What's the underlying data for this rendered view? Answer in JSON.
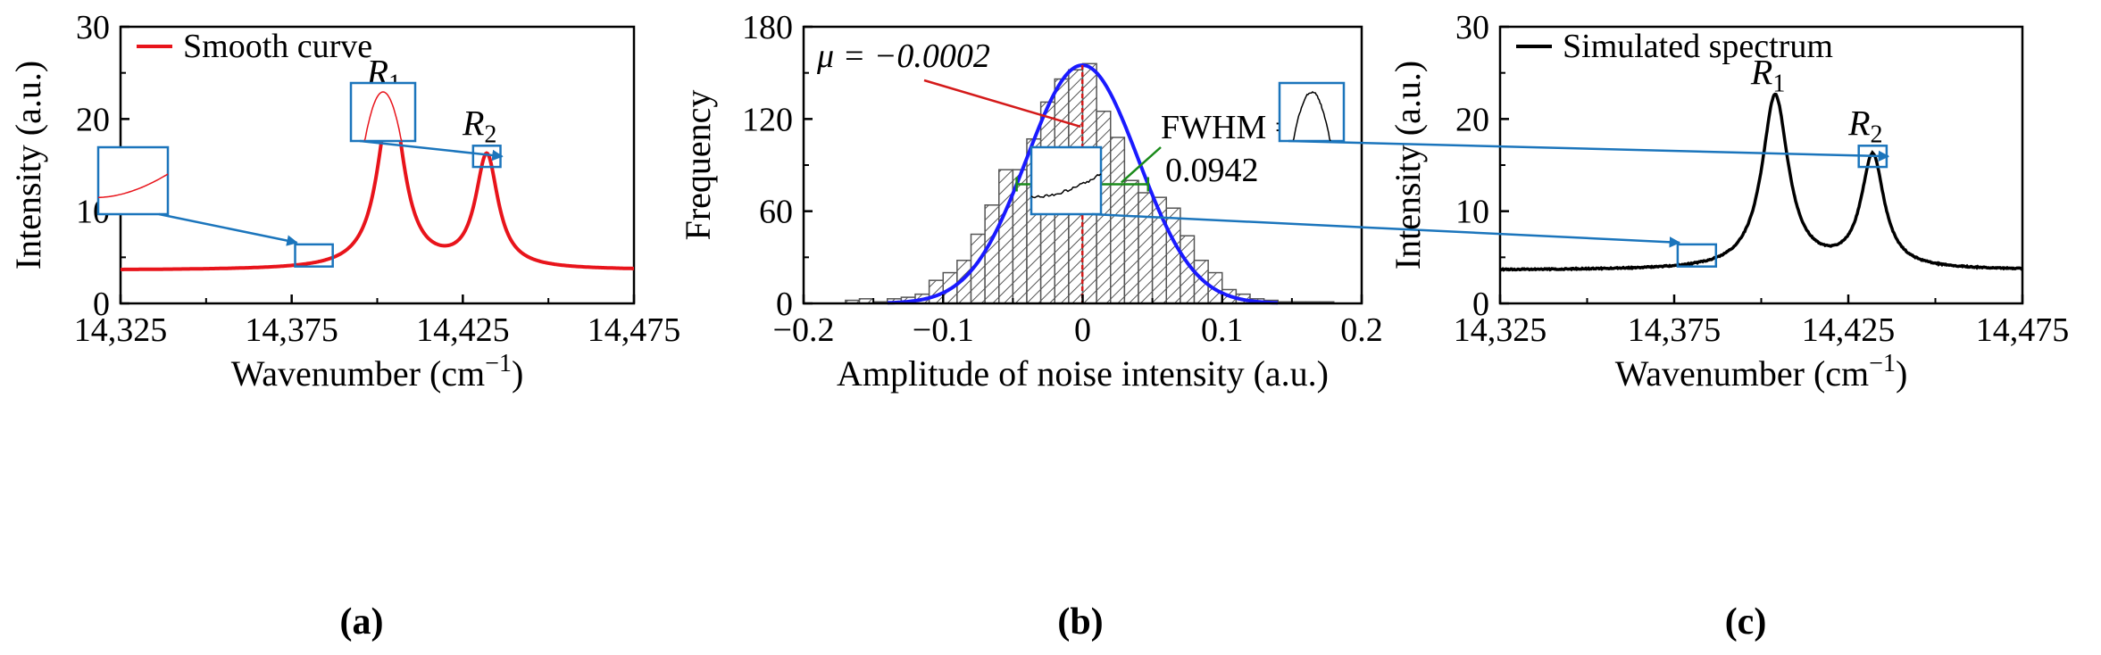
{
  "chart_data": [
    {
      "panel": "(a)",
      "type": "line",
      "xlabel": "Wavenumber (cm",
      "xlabel_sup": "−1",
      "xlabel_close": ")",
      "ylabel": "Intensity (a.u.)",
      "xlim": [
        14325,
        14475
      ],
      "ylim": [
        0,
        30
      ],
      "xticks": [
        14325,
        14375,
        14425,
        14475
      ],
      "xtick_labels": [
        "14,325",
        "14,375",
        "14,425",
        "14,475"
      ],
      "yticks": [
        0,
        10,
        20,
        30
      ],
      "ytick_labels": [
        "0",
        "10",
        "20",
        "30"
      ],
      "legend": "Smooth curve",
      "color": "#e8141b",
      "baseline": 3.6,
      "peaks": [
        {
          "label": "R",
          "sub": "1",
          "x": 14404,
          "y": 22.4
        },
        {
          "label": "R",
          "sub": "2",
          "x": 14432,
          "y": 16.1
        }
      ],
      "zoom_boxes": [
        {
          "x": [
            14376,
            14387
          ],
          "y": [
            4.0,
            6.4
          ]
        },
        {
          "x": [
            14428,
            14436
          ],
          "y": [
            14.8,
            17.1
          ]
        }
      ]
    },
    {
      "panel": "(b)",
      "type": "bar",
      "xlabel": "Amplitude of noise intensity (a.u.)",
      "ylabel": "Frequency",
      "xlim": [
        -0.2,
        0.2
      ],
      "ylim": [
        0,
        180
      ],
      "xticks": [
        -0.2,
        -0.1,
        0,
        0.1,
        0.2
      ],
      "xtick_labels": [
        "−0.2",
        "−0.1",
        "0",
        "0.1",
        "0.2"
      ],
      "yticks": [
        0,
        60,
        120,
        180
      ],
      "ytick_labels": [
        "0",
        "60",
        "120",
        "180"
      ],
      "bin_width": 0.01,
      "bin_centers": [
        -0.165,
        -0.155,
        -0.145,
        -0.135,
        -0.125,
        -0.115,
        -0.105,
        -0.095,
        -0.085,
        -0.075,
        -0.065,
        -0.055,
        -0.045,
        -0.035,
        -0.025,
        -0.015,
        -0.005,
        0.005,
        0.015,
        0.025,
        0.035,
        0.045,
        0.055,
        0.065,
        0.075,
        0.085,
        0.095,
        0.105,
        0.115,
        0.125,
        0.135,
        0.145,
        0.155,
        0.165,
        0.175
      ],
      "counts": [
        2,
        3,
        1,
        3,
        4,
        6,
        15,
        20,
        28,
        45,
        64,
        87,
        87,
        107,
        131,
        146,
        152,
        156,
        125,
        108,
        80,
        72,
        69,
        62,
        44,
        28,
        20,
        9,
        6,
        3,
        2,
        1,
        1,
        1,
        1
      ],
      "fit": {
        "mu": -0.0002,
        "fwhm": 0.0942,
        "peak": 155,
        "color": "#1a1aff"
      },
      "mean_line_color": "#d41a1a",
      "fwhm_line_color": "#1a8a1a",
      "mu_label": "μ = −0.0002",
      "fwhm_label_1": "FWHM =",
      "fwhm_label_2": "0.0942"
    },
    {
      "panel": "(c)",
      "type": "line",
      "xlabel": "Wavenumber (cm",
      "xlabel_sup": "−1",
      "xlabel_close": ")",
      "ylabel": "Intensity (a.u.)",
      "xlim": [
        14325,
        14475
      ],
      "ylim": [
        0,
        30
      ],
      "xticks": [
        14325,
        14375,
        14425,
        14475
      ],
      "xtick_labels": [
        "14,325",
        "14,375",
        "14,425",
        "14,475"
      ],
      "yticks": [
        0,
        10,
        20,
        30
      ],
      "ytick_labels": [
        "0",
        "10",
        "20",
        "30"
      ],
      "legend": "Simulated spectrum",
      "color": "#000000",
      "baseline": 3.6,
      "noise": 0.06,
      "peaks": [
        {
          "label": "R",
          "sub": "1",
          "x": 14404,
          "y": 22.4
        },
        {
          "label": "R",
          "sub": "2",
          "x": 14432,
          "y": 16.1
        }
      ],
      "zoom_boxes": [
        {
          "x": [
            14376,
            14387
          ],
          "y": [
            4.0,
            6.4
          ]
        },
        {
          "x": [
            14428,
            14436
          ],
          "y": [
            14.8,
            17.1
          ]
        }
      ]
    }
  ]
}
